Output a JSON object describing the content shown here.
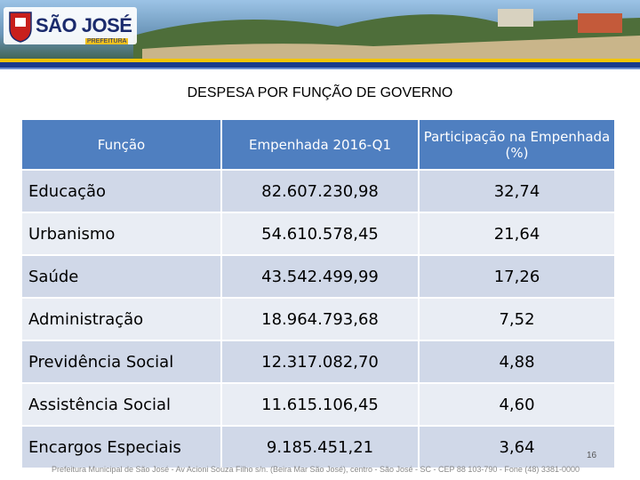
{
  "header": {
    "logo_title": "SÃO JOSÉ",
    "logo_subtitle": "PREFEITURA"
  },
  "title": "DESPESA POR FUNÇÃO DE GOVERNO",
  "table": {
    "columns": [
      "Função",
      "Empenhada 2016-Q1",
      "Participação na Empenhada (%)"
    ],
    "rows": [
      [
        "Educação",
        "82.607.230,98",
        "32,74"
      ],
      [
        "Urbanismo",
        "54.610.578,45",
        "21,64"
      ],
      [
        "Saúde",
        "43.542.499,99",
        "17,26"
      ],
      [
        "Administração",
        "18.964.793,68",
        "7,52"
      ],
      [
        "Previdência Social",
        "12.317.082,70",
        "4,88"
      ],
      [
        "Assistência Social",
        "11.615.106,45",
        "4,60"
      ],
      [
        "Encargos Especiais",
        "9.185.451,21",
        "3,64"
      ]
    ]
  },
  "page_number": "16",
  "footer": "Prefeitura Municipal de São José - Av Acioni Souza Filho s/n. (Beira Mar São José), centro - São José - SC - CEP 88 103-790 - Fone (48) 3381-0000"
}
